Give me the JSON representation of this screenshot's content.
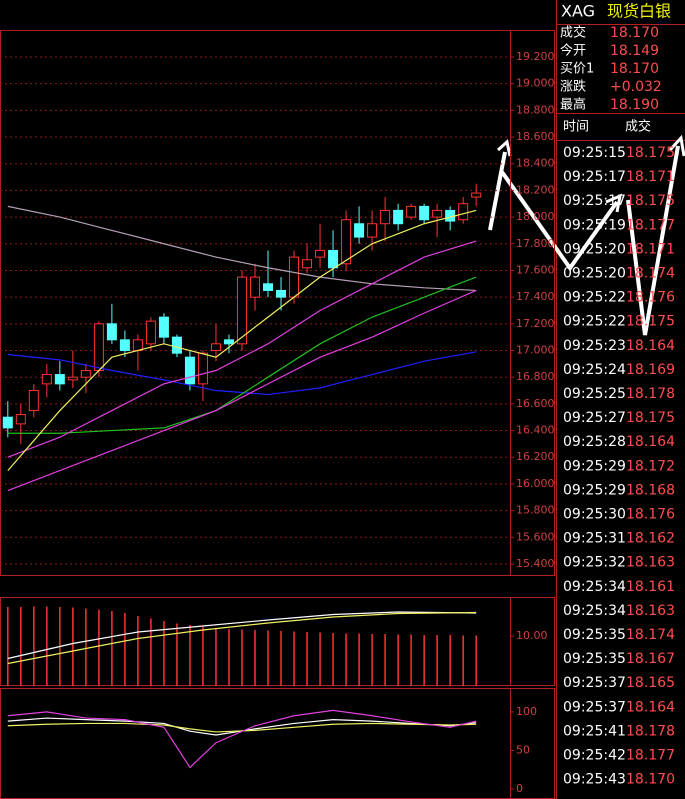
{
  "quote": {
    "symbol": "XAG",
    "name": "现货白银",
    "rows": [
      {
        "label": "成交",
        "value": "18.170"
      },
      {
        "label": "今开",
        "value": "18.149"
      },
      {
        "label": "买价1",
        "value": "18.170"
      },
      {
        "label": "涨跌",
        "value": "+0.032"
      },
      {
        "label": "最高",
        "value": "18.190"
      }
    ]
  },
  "trades": {
    "header": [
      "时间",
      "成交"
    ],
    "rows": [
      [
        "09:25:15",
        "18.175"
      ],
      [
        "09:25:17",
        "18.171"
      ],
      [
        "09:25:17",
        "18.175"
      ],
      [
        "09:25:19",
        "18.177"
      ],
      [
        "09:25:20",
        "18.171"
      ],
      [
        "09:25:20",
        "18.174"
      ],
      [
        "09:25:22",
        "18.176"
      ],
      [
        "09:25:22",
        "18.175"
      ],
      [
        "09:25:23",
        "18.164"
      ],
      [
        "09:25:24",
        "18.169"
      ],
      [
        "09:25:25",
        "18.178"
      ],
      [
        "09:25:27",
        "18.175"
      ],
      [
        "09:25:28",
        "18.164"
      ],
      [
        "09:25:29",
        "18.172"
      ],
      [
        "09:25:29",
        "18.168"
      ],
      [
        "09:25:30",
        "18.176"
      ],
      [
        "09:25:31",
        "18.162"
      ],
      [
        "09:25:32",
        "18.163"
      ],
      [
        "09:25:34",
        "18.161"
      ],
      [
        "09:25:34",
        "18.163"
      ],
      [
        "09:25:35",
        "18.174"
      ],
      [
        "09:25:35",
        "18.167"
      ],
      [
        "09:25:37",
        "18.165"
      ],
      [
        "09:25:37",
        "18.164"
      ],
      [
        "09:25:41",
        "18.178"
      ],
      [
        "09:25:42",
        "18.177"
      ],
      [
        "09:25:43",
        "18.170"
      ]
    ]
  },
  "chart_data": [
    {
      "type": "candlestick",
      "x": [
        1,
        2,
        3,
        4,
        5,
        6,
        7,
        8,
        9,
        10,
        11,
        12,
        13,
        14,
        15,
        16,
        17,
        18,
        19,
        20,
        21,
        22,
        23,
        24,
        25,
        26,
        27,
        28,
        29,
        30,
        31,
        32,
        33,
        34,
        35,
        36,
        37
      ],
      "open": [
        16.5,
        16.45,
        16.55,
        16.75,
        16.82,
        16.78,
        16.8,
        16.85,
        17.2,
        17.08,
        17.0,
        17.05,
        17.25,
        17.1,
        16.95,
        16.75,
        17.0,
        17.08,
        17.05,
        17.4,
        17.5,
        17.45,
        17.4,
        17.62,
        17.7,
        17.75,
        17.65,
        17.95,
        17.85,
        17.95,
        18.05,
        18.0,
        18.08,
        18.0,
        18.05,
        17.98,
        18.15
      ],
      "high": [
        16.62,
        16.6,
        16.75,
        16.9,
        16.92,
        17.0,
        16.9,
        17.22,
        17.35,
        17.15,
        17.12,
        17.25,
        17.28,
        17.12,
        17.0,
        17.0,
        17.2,
        17.12,
        17.6,
        17.65,
        17.75,
        17.55,
        17.75,
        17.8,
        17.95,
        17.9,
        18.05,
        18.08,
        18.05,
        18.15,
        18.1,
        18.1,
        18.1,
        18.1,
        18.08,
        18.15,
        18.25
      ],
      "low": [
        16.35,
        16.3,
        16.5,
        16.65,
        16.7,
        16.72,
        16.68,
        16.8,
        17.05,
        16.95,
        16.85,
        17.0,
        17.05,
        16.95,
        16.7,
        16.62,
        16.92,
        16.98,
        17.0,
        17.3,
        17.4,
        17.3,
        17.35,
        17.58,
        17.62,
        17.55,
        17.6,
        17.8,
        17.75,
        17.82,
        17.9,
        17.98,
        17.95,
        17.85,
        17.9,
        17.95,
        18.08
      ],
      "close": [
        16.42,
        16.52,
        16.7,
        16.82,
        16.75,
        16.8,
        16.85,
        17.2,
        17.08,
        17.0,
        17.08,
        17.22,
        17.1,
        16.98,
        16.75,
        16.98,
        17.05,
        17.05,
        17.55,
        17.55,
        17.45,
        17.4,
        17.7,
        17.68,
        17.75,
        17.62,
        17.98,
        17.85,
        17.95,
        18.05,
        17.95,
        18.08,
        17.98,
        18.05,
        17.97,
        18.1,
        18.18
      ],
      "up_color": "#ff3232",
      "down_color": "#54ffff",
      "series": [
        {
          "color": "#b4a0b4",
          "x": [
            1,
            5,
            9,
            13,
            17,
            21,
            25,
            29,
            33,
            37
          ],
          "values": [
            18.08,
            18.0,
            17.9,
            17.8,
            17.7,
            17.62,
            17.55,
            17.5,
            17.47,
            17.45
          ]
        },
        {
          "color": "#2020ff",
          "x": [
            1,
            5,
            9,
            13,
            17,
            21,
            25,
            29,
            33,
            37
          ],
          "values": [
            16.97,
            16.93,
            16.85,
            16.78,
            16.7,
            16.67,
            16.72,
            16.82,
            16.92,
            16.99
          ]
        },
        {
          "color": "#20c020",
          "x": [
            1,
            5,
            9,
            13,
            17,
            21,
            25,
            29,
            33,
            37
          ],
          "values": [
            16.38,
            16.38,
            16.4,
            16.42,
            16.55,
            16.8,
            17.05,
            17.25,
            17.4,
            17.55
          ]
        },
        {
          "color": "#e040e0",
          "x": [
            1,
            5,
            9,
            13,
            17,
            21,
            25,
            29,
            33,
            37
          ],
          "values": [
            15.95,
            16.1,
            16.25,
            16.4,
            16.55,
            16.75,
            16.95,
            17.1,
            17.28,
            17.45
          ]
        },
        {
          "color": "#e040e0",
          "x": [
            1,
            5,
            9,
            13,
            17,
            21,
            25,
            29,
            33,
            37
          ],
          "values": [
            16.2,
            16.35,
            16.55,
            16.75,
            16.85,
            17.05,
            17.3,
            17.5,
            17.7,
            17.82
          ]
        },
        {
          "color": "#f0f060",
          "x": [
            1,
            5,
            9,
            13,
            17,
            21,
            25,
            29,
            33,
            37
          ],
          "values": [
            16.1,
            16.55,
            16.95,
            17.05,
            16.95,
            17.25,
            17.55,
            17.8,
            17.95,
            18.05
          ]
        }
      ],
      "xlim": [
        0.4,
        39.6
      ],
      "ylim": [
        15.31,
        19.402
      ],
      "yticks": [
        {
          "value": 15.4,
          "label": "15.400"
        },
        {
          "value": 15.6,
          "label": "15.600"
        },
        {
          "value": 15.8,
          "label": "15.800"
        },
        {
          "value": 16.0,
          "label": "16.000"
        },
        {
          "value": 16.2,
          "label": "16.200"
        },
        {
          "value": 16.4,
          "label": "16.400"
        },
        {
          "value": 16.6,
          "label": "16.600"
        },
        {
          "value": 16.8,
          "label": "16.800"
        },
        {
          "value": 17.0,
          "label": "17.000"
        },
        {
          "value": 17.2,
          "label": "17.200"
        },
        {
          "value": 17.4,
          "label": "17.400"
        },
        {
          "value": 17.6,
          "label": "17.600"
        },
        {
          "value": 17.8,
          "label": "17.800"
        },
        {
          "value": 18.0,
          "label": "18.000"
        },
        {
          "value": 18.2,
          "label": "18.200"
        },
        {
          "value": 18.4,
          "label": "18.400"
        },
        {
          "value": 18.6,
          "label": "18.600"
        },
        {
          "value": 18.8,
          "label": "18.800"
        },
        {
          "value": 19.0,
          "label": "19.000"
        },
        {
          "value": 19.2,
          "label": "19.200"
        }
      ],
      "grid": true
    },
    {
      "type": "bar",
      "x": [
        1,
        2,
        3,
        4,
        5,
        6,
        7,
        8,
        9,
        10,
        11,
        12,
        13,
        14,
        15,
        16,
        17,
        18,
        19,
        20,
        21,
        22,
        23,
        24,
        25,
        26,
        27,
        28,
        29,
        30,
        31,
        32,
        33,
        34,
        35,
        36,
        37
      ],
      "values": [
        15.8,
        15.8,
        15.9,
        15.9,
        15.8,
        15.7,
        15.5,
        15.3,
        15.0,
        14.6,
        14.0,
        13.5,
        13.0,
        12.5,
        12.2,
        11.8,
        11.6,
        11.4,
        11.3,
        11.2,
        11.1,
        11.0,
        10.9,
        10.8,
        10.7,
        10.6,
        10.5,
        10.5,
        10.4,
        10.4,
        10.3,
        10.3,
        10.2,
        10.2,
        10.2,
        10.1,
        10.1
      ],
      "color": "#ff3232",
      "series": [
        {
          "color": "#ffffff",
          "x": [
            1,
            6,
            11,
            16,
            21,
            26,
            31,
            37
          ],
          "values": [
            5.5,
            8.5,
            10.8,
            12.0,
            13.2,
            14.3,
            14.8,
            14.6
          ]
        },
        {
          "color": "#f0f060",
          "x": [
            1,
            6,
            11,
            16,
            21,
            26,
            31,
            37
          ],
          "values": [
            4.5,
            7.0,
            9.5,
            11.2,
            12.6,
            13.8,
            14.5,
            14.7
          ]
        }
      ],
      "xlim": [
        0.4,
        39.6
      ],
      "ylim": [
        0,
        17.8
      ],
      "yticks": [
        {
          "value": 10,
          "label": "10.00"
        }
      ]
    },
    {
      "type": "line",
      "series": [
        {
          "color": "#ffffff",
          "x": [
            1,
            4,
            7,
            10,
            13,
            15,
            17,
            20,
            23,
            26,
            29,
            32,
            35,
            37
          ],
          "values": [
            88,
            92,
            90,
            88,
            85,
            75,
            70,
            78,
            85,
            90,
            88,
            85,
            82,
            86
          ]
        },
        {
          "color": "#f0f060",
          "x": [
            1,
            4,
            7,
            10,
            13,
            15,
            17,
            20,
            23,
            26,
            29,
            32,
            35,
            37
          ],
          "values": [
            82,
            84,
            85,
            85,
            83,
            78,
            74,
            76,
            80,
            84,
            85,
            84,
            83,
            84
          ]
        },
        {
          "color": "#e040e0",
          "x": [
            1,
            4,
            7,
            10,
            13,
            15,
            17,
            20,
            23,
            26,
            29,
            32,
            35,
            37
          ],
          "values": [
            95,
            100,
            92,
            90,
            80,
            28,
            60,
            82,
            95,
            102,
            95,
            87,
            80,
            88
          ]
        }
      ],
      "xlim": [
        0.4,
        39.6
      ],
      "ylim": [
        -13,
        131
      ],
      "yticks": [
        100,
        50,
        0
      ]
    }
  ]
}
